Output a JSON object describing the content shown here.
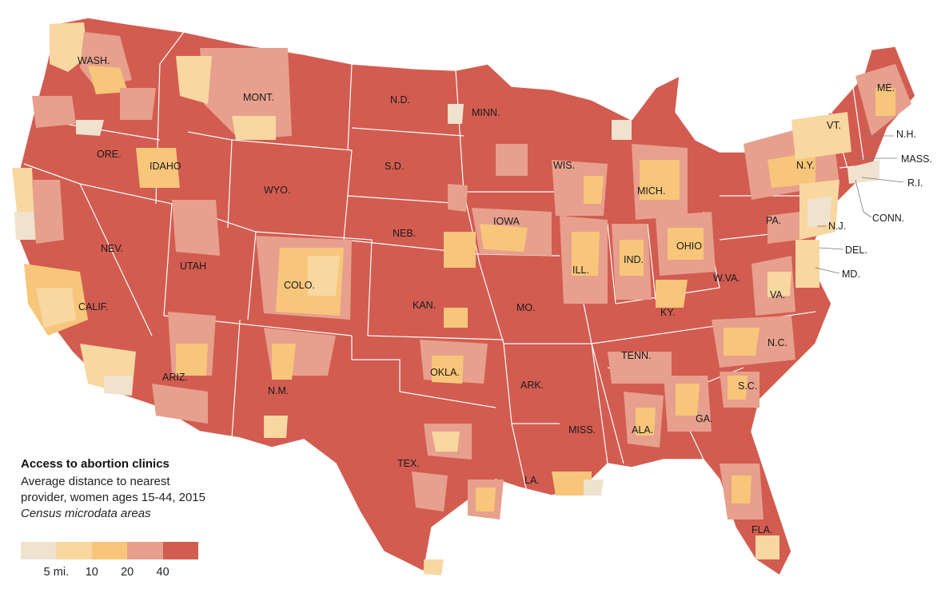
{
  "legend": {
    "title": "Access to abortion clinics",
    "subtitle_line1": "Average distance to nearest",
    "subtitle_line2": "provider, women ages 15-44, 2015",
    "note": "Census microdata areas",
    "bins": [
      {
        "color": "#efe2cf"
      },
      {
        "color": "#f8d7a0"
      },
      {
        "color": "#f7c67a"
      },
      {
        "color": "#e7a08d"
      },
      {
        "color": "#d25c50"
      }
    ],
    "ticks": [
      "5 mi.",
      "10",
      "20",
      "40"
    ]
  },
  "colors": {
    "base": "#d25c50",
    "border": "#ffffff"
  },
  "states": {
    "WASH.": "WASH.",
    "ORE.": "ORE.",
    "CALIF.": "CALIF.",
    "NEV.": "NEV.",
    "IDAHO": "IDAHO",
    "MONT.": "MONT.",
    "WYO.": "WYO.",
    "UTAH": "UTAH",
    "COLO.": "COLO.",
    "ARIZ.": "ARIZ.",
    "N.M.": "N.M.",
    "N.D.": "N.D.",
    "S.D.": "S.D.",
    "NEB.": "NEB.",
    "KAN.": "KAN.",
    "OKLA.": "OKLA.",
    "TEX.": "TEX.",
    "MINN.": "MINN.",
    "IOWA": "IOWA",
    "MO.": "MO.",
    "ARK.": "ARK.",
    "LA.": "LA.",
    "WIS.": "WIS.",
    "ILL.": "ILL.",
    "MICH.": "MICH.",
    "IND.": "IND.",
    "OHIO": "OHIO",
    "KY.": "KY.",
    "TENN.": "TENN.",
    "MISS.": "MISS.",
    "ALA.": "ALA.",
    "GA.": "GA.",
    "FLA.": "FLA.",
    "S.C.": "S.C.",
    "N.C.": "N.C.",
    "VA.": "VA.",
    "W.VA.": "W.VA.",
    "PA.": "PA.",
    "N.Y.": "N.Y.",
    "VT.": "VT.",
    "ME.": "ME.",
    "N.H.": "N.H.",
    "MASS.": "MASS.",
    "R.I.": "R.I.",
    "CONN.": "CONN.",
    "N.J.": "N.J.",
    "DEL.": "DEL.",
    "MD.": "MD."
  }
}
